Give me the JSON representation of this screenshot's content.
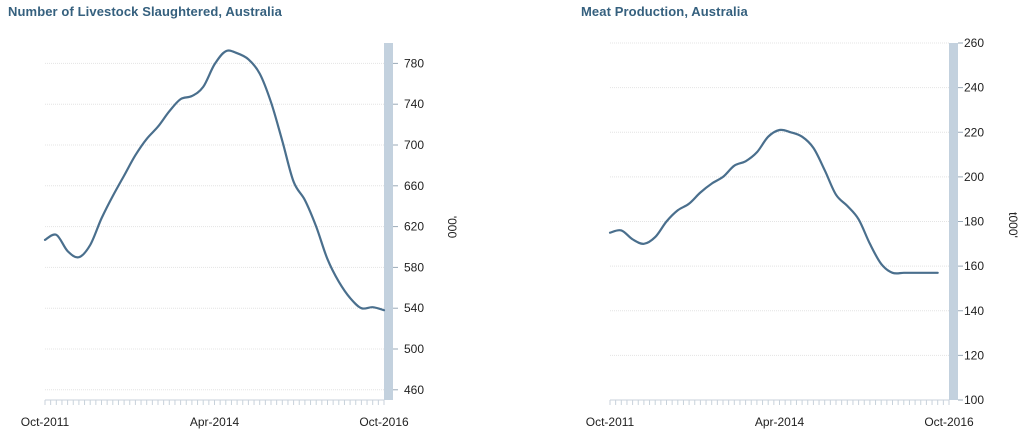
{
  "chart_data": [
    {
      "type": "line",
      "title": "Number of Livestock Slaughtered, Australia",
      "ylabel": "'000",
      "ylim": [
        450,
        800
      ],
      "yticks": [
        460,
        500,
        540,
        580,
        620,
        660,
        700,
        740,
        780
      ],
      "xticks": [
        "Oct-2011",
        "Apr-2014",
        "Oct-2016"
      ],
      "x_range": [
        "Oct-2011",
        "Oct-2016"
      ],
      "grid": true,
      "y_axis_position": "right",
      "series": [
        {
          "color": "#4a6f8d",
          "x": [
            "Oct-2011",
            "Dec-2011",
            "Feb-2012",
            "Apr-2012",
            "Jun-2012",
            "Aug-2012",
            "Oct-2012",
            "Dec-2012",
            "Feb-2013",
            "Apr-2013",
            "Jun-2013",
            "Aug-2013",
            "Oct-2013",
            "Dec-2013",
            "Feb-2014",
            "Apr-2014",
            "Jun-2014",
            "Aug-2014",
            "Oct-2014",
            "Dec-2014",
            "Feb-2015",
            "Apr-2015",
            "Jun-2015",
            "Aug-2015",
            "Oct-2015",
            "Dec-2015",
            "Feb-2016",
            "Apr-2016",
            "Jun-2016",
            "Aug-2016",
            "Oct-2016"
          ],
          "y": [
            607,
            612,
            596,
            590,
            602,
            628,
            650,
            670,
            690,
            706,
            718,
            733,
            745,
            748,
            757,
            779,
            792,
            790,
            784,
            770,
            742,
            704,
            664,
            646,
            620,
            588,
            566,
            550,
            540,
            541,
            538
          ]
        }
      ]
    },
    {
      "type": "line",
      "title": "Meat Production, Australia",
      "ylabel": "t000'",
      "ylim": [
        100,
        260
      ],
      "yticks": [
        100,
        120,
        140,
        160,
        180,
        200,
        220,
        240,
        260
      ],
      "xticks": [
        "Oct-2011",
        "Apr-2014",
        "Oct-2016"
      ],
      "x_range": [
        "Oct-2011",
        "Oct-2016"
      ],
      "grid": true,
      "y_axis_position": "right",
      "series": [
        {
          "color": "#4a6f8d",
          "x": [
            "Oct-2011",
            "Dec-2011",
            "Feb-2012",
            "Apr-2012",
            "Jun-2012",
            "Aug-2012",
            "Oct-2012",
            "Dec-2012",
            "Feb-2013",
            "Apr-2013",
            "Jun-2013",
            "Aug-2013",
            "Oct-2013",
            "Dec-2013",
            "Feb-2014",
            "Apr-2014",
            "Jun-2014",
            "Aug-2014",
            "Oct-2014",
            "Dec-2014",
            "Feb-2015",
            "Apr-2015",
            "Jun-2015",
            "Aug-2015",
            "Oct-2015",
            "Dec-2015",
            "Feb-2016",
            "Apr-2016",
            "Jun-2016",
            "Aug-2016"
          ],
          "y": [
            175,
            176,
            172,
            170,
            173,
            180,
            185,
            188,
            193,
            197,
            200,
            205,
            207,
            211,
            218,
            221,
            220,
            218,
            213,
            203,
            192,
            187,
            181,
            170,
            161,
            157,
            157,
            157,
            157,
            157
          ]
        }
      ]
    }
  ]
}
